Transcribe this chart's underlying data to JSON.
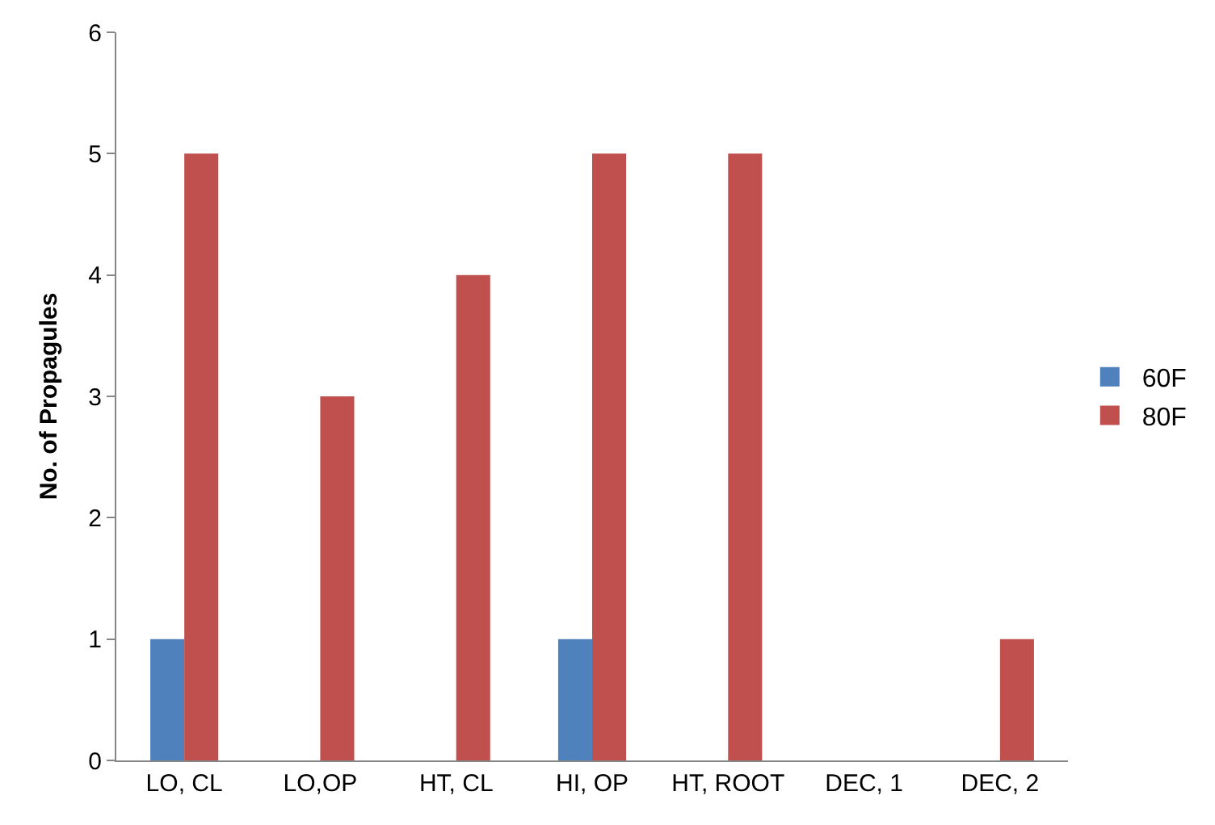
{
  "chart_data": {
    "type": "bar",
    "ylabel": "No. of Propagules",
    "categories": [
      "LO, CL",
      "LO,OP",
      "HT, CL",
      "HI, OP",
      "HT, ROOT",
      "DEC, 1",
      "DEC, 2"
    ],
    "series": [
      {
        "name": "60F",
        "color": "#4f81bd",
        "values": [
          1,
          0,
          0,
          1,
          0,
          0,
          0
        ]
      },
      {
        "name": "80F",
        "color": "#c0504d",
        "values": [
          5,
          3,
          4,
          5,
          5,
          0,
          1
        ]
      }
    ],
    "ylim": [
      0,
      6
    ],
    "yticks": [
      0,
      1,
      2,
      3,
      4,
      5,
      6
    ],
    "grid": false,
    "legend": "right"
  }
}
